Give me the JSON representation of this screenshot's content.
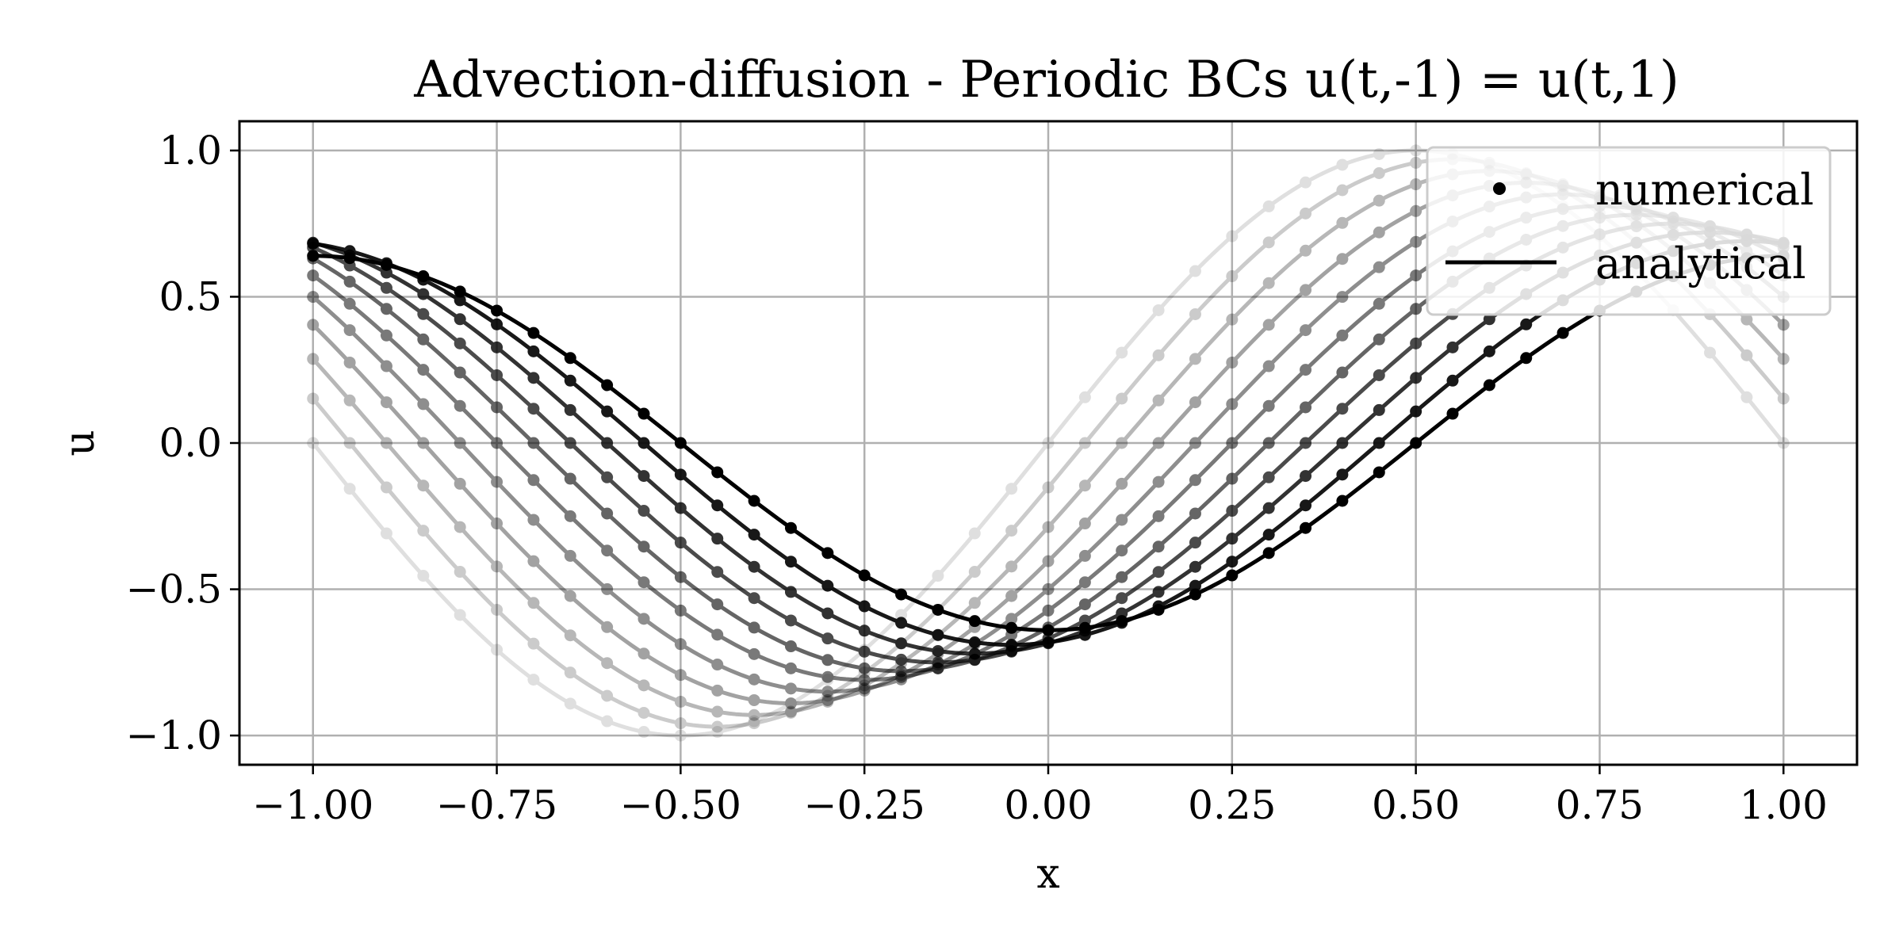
{
  "chart_data": {
    "type": "line",
    "title": "Advection-diffusion - Periodic BCs u(t,-1) = u(t,1)",
    "xlabel": "x",
    "ylabel": "u",
    "xlim": [
      -1.1,
      1.1
    ],
    "ylim": [
      -1.1,
      1.1
    ],
    "xticks": [
      -1.0,
      -0.75,
      -0.5,
      -0.25,
      0.0,
      0.25,
      0.5,
      0.75,
      1.0
    ],
    "xtick_labels": [
      "−1.00",
      "−0.75",
      "−0.50",
      "−0.25",
      "0.00",
      "0.25",
      "0.50",
      "0.75",
      "1.00"
    ],
    "yticks": [
      1.0,
      0.5,
      0.0,
      -0.5,
      -1.0
    ],
    "ytick_labels": [
      "1.0",
      "0.5",
      "0.0",
      "−0.5",
      "−1.0"
    ],
    "grid": true,
    "legend": {
      "location": "top-right",
      "entries": [
        {
          "label": "numerical",
          "marker": "dot"
        },
        {
          "label": "analytical",
          "marker": "line"
        }
      ]
    },
    "series_model": "u(x) = A * sin(pi * (x - c))",
    "series": [
      {
        "shift": 0.0,
        "amplitude": 1.0,
        "opacity": 0.12
      },
      {
        "shift": 0.05,
        "amplitude": 0.97,
        "opacity": 0.2
      },
      {
        "shift": 0.1,
        "amplitude": 0.93,
        "opacity": 0.28
      },
      {
        "shift": 0.15,
        "amplitude": 0.89,
        "opacity": 0.36
      },
      {
        "shift": 0.2,
        "amplitude": 0.85,
        "opacity": 0.44
      },
      {
        "shift": 0.25,
        "amplitude": 0.81,
        "opacity": 0.52
      },
      {
        "shift": 0.3,
        "amplitude": 0.78,
        "opacity": 0.6
      },
      {
        "shift": 0.35,
        "amplitude": 0.75,
        "opacity": 0.7
      },
      {
        "shift": 0.4,
        "amplitude": 0.72,
        "opacity": 0.8
      },
      {
        "shift": 0.45,
        "amplitude": 0.69,
        "opacity": 0.9
      },
      {
        "shift": 0.5,
        "amplitude": 0.64,
        "opacity": 1.0
      }
    ],
    "numerical_x_step": 0.05,
    "line_color": "#000000",
    "grid_color": "#b0b0b0"
  }
}
